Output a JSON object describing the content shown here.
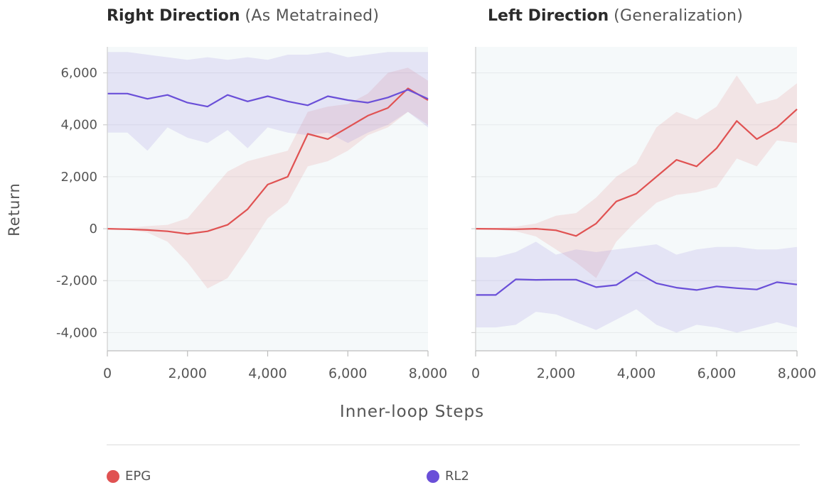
{
  "panels": [
    {
      "title_bold": "Right Direction",
      "title_rest": "(As Metatrained)"
    },
    {
      "title_bold": "Left Direction",
      "title_rest": "(Generalization)"
    }
  ],
  "axes": {
    "ylabel": "Return",
    "xlabel": "Inner-loop Steps"
  },
  "legend": [
    {
      "name": "EPG",
      "color": "#e05252"
    },
    {
      "name": "RL2",
      "color": "#6a4fd8"
    }
  ],
  "chart_data": [
    {
      "type": "line",
      "title": "Right Direction (As Metatrained)",
      "xlabel": "Inner-loop Steps",
      "ylabel": "Return",
      "xlim": [
        0,
        8000
      ],
      "ylim": [
        -4700,
        7000
      ],
      "xticks": [
        0,
        2000,
        4000,
        6000,
        8000
      ],
      "xtick_labels": [
        "0",
        "2,000",
        "4,000",
        "6,000",
        "8,000"
      ],
      "yticks": [
        -4000,
        -2000,
        0,
        2000,
        4000,
        6000
      ],
      "ytick_labels": [
        "-4,000",
        "-2,000",
        "0",
        "2,000",
        "4,000",
        "6,000"
      ],
      "grid": true,
      "series": [
        {
          "name": "EPG",
          "color": "#e05252",
          "x": [
            0,
            500,
            1000,
            1500,
            2000,
            2500,
            3000,
            3500,
            4000,
            4500,
            5000,
            5500,
            6000,
            6500,
            7000,
            7500,
            8000
          ],
          "values": [
            0,
            -20,
            -50,
            -100,
            -200,
            -100,
            150,
            750,
            1700,
            2000,
            3650,
            3450,
            3900,
            4350,
            4650,
            5400,
            4950
          ],
          "lower": [
            0,
            -30,
            -150,
            -500,
            -1300,
            -2300,
            -1900,
            -800,
            400,
            1000,
            2400,
            2600,
            3000,
            3600,
            3900,
            4500,
            4000
          ],
          "upper": [
            0,
            30,
            100,
            150,
            400,
            1300,
            2200,
            2600,
            2800,
            3000,
            4500,
            4700,
            4800,
            5200,
            6000,
            6200,
            5700
          ]
        },
        {
          "name": "RL2",
          "color": "#6a4fd8",
          "x": [
            0,
            500,
            1000,
            1500,
            2000,
            2500,
            3000,
            3500,
            4000,
            4500,
            5000,
            5500,
            6000,
            6500,
            7000,
            7500,
            8000
          ],
          "values": [
            5200,
            5200,
            5000,
            5150,
            4850,
            4700,
            5150,
            4900,
            5100,
            4900,
            4750,
            5100,
            4950,
            4850,
            5050,
            5350,
            5000
          ],
          "lower": [
            3700,
            3700,
            3000,
            3900,
            3500,
            3300,
            3800,
            3100,
            3900,
            3700,
            3600,
            3700,
            3300,
            3700,
            4000,
            4500,
            3900
          ],
          "upper": [
            6800,
            6800,
            6700,
            6600,
            6500,
            6600,
            6500,
            6600,
            6500,
            6700,
            6700,
            6800,
            6600,
            6700,
            6800,
            6800,
            6800
          ]
        }
      ]
    },
    {
      "type": "line",
      "title": "Left Direction (Generalization)",
      "xlabel": "Inner-loop Steps",
      "ylabel": "Return",
      "xlim": [
        0,
        8000
      ],
      "ylim": [
        -4700,
        7000
      ],
      "xticks": [
        0,
        2000,
        4000,
        6000,
        8000
      ],
      "xtick_labels": [
        "0",
        "2,000",
        "4,000",
        "6,000",
        "8,000"
      ],
      "yticks": [
        -4000,
        -2000,
        0,
        2000,
        4000,
        6000
      ],
      "grid": true,
      "series": [
        {
          "name": "EPG",
          "color": "#e05252",
          "x": [
            0,
            500,
            1000,
            1500,
            2000,
            2500,
            3000,
            3500,
            4000,
            4500,
            5000,
            5500,
            6000,
            6500,
            7000,
            7500,
            8000
          ],
          "values": [
            0,
            -10,
            -20,
            0,
            -60,
            -280,
            200,
            1050,
            1350,
            2000,
            2650,
            2400,
            3100,
            4150,
            3450,
            3900,
            4600
          ],
          "lower": [
            0,
            -30,
            -100,
            -300,
            -800,
            -1300,
            -1900,
            -500,
            300,
            1000,
            1300,
            1400,
            1600,
            2700,
            2400,
            3400,
            3300
          ],
          "upper": [
            0,
            30,
            80,
            200,
            500,
            600,
            1200,
            2000,
            2500,
            3900,
            4500,
            4200,
            4700,
            5900,
            4800,
            5000,
            5600
          ]
        },
        {
          "name": "RL2",
          "color": "#6a4fd8",
          "x": [
            0,
            500,
            1000,
            1500,
            2000,
            2500,
            3000,
            3500,
            4000,
            4500,
            5000,
            5500,
            6000,
            6500,
            7000,
            7500,
            8000
          ],
          "values": [
            -2550,
            -2550,
            -1950,
            -1970,
            -1960,
            -1960,
            -2250,
            -2170,
            -1670,
            -2100,
            -2270,
            -2360,
            -2220,
            -2290,
            -2340,
            -2060,
            -2150
          ],
          "lower": [
            -3800,
            -3800,
            -3700,
            -3200,
            -3300,
            -3600,
            -3900,
            -3500,
            -3100,
            -3700,
            -4000,
            -3700,
            -3800,
            -4000,
            -3800,
            -3600,
            -3800
          ],
          "upper": [
            -1100,
            -1100,
            -900,
            -500,
            -1000,
            -800,
            -900,
            -800,
            -700,
            -600,
            -1000,
            -800,
            -700,
            -700,
            -800,
            -800,
            -700
          ]
        }
      ]
    }
  ]
}
